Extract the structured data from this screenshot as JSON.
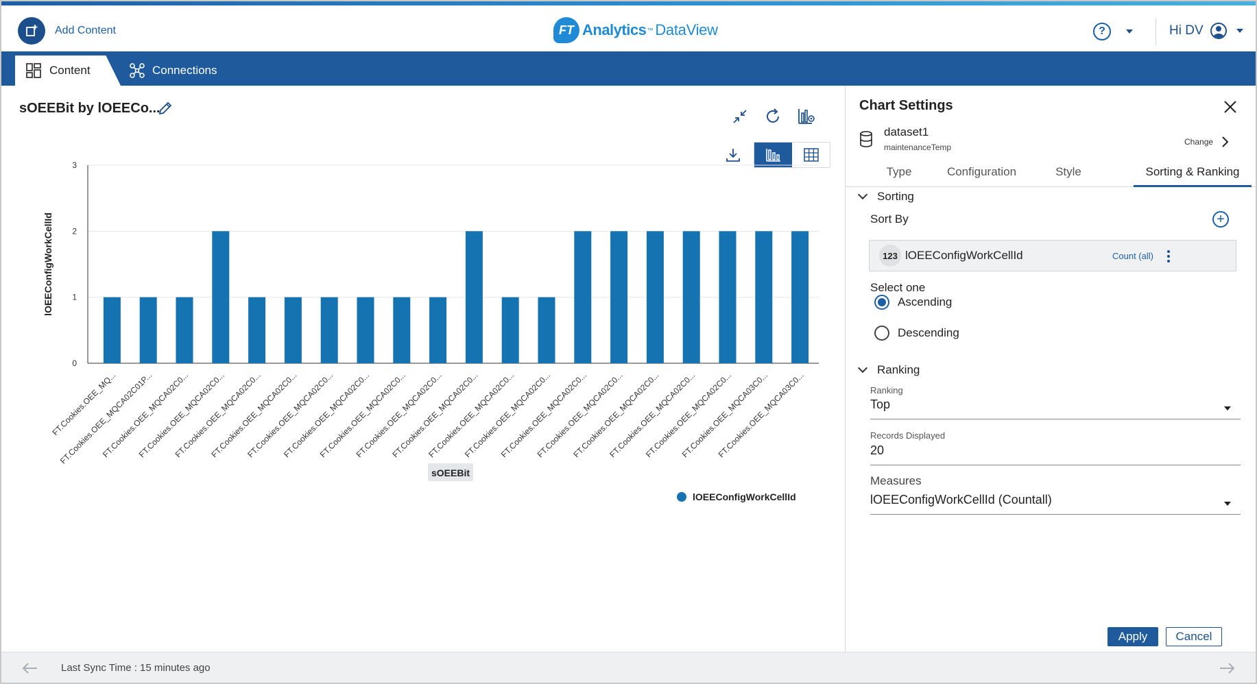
{
  "header": {
    "add_content_label": "Add Content",
    "brand_badge": "FT",
    "brand_name": "Analytics",
    "brand_tm": "™",
    "brand_product": "DataView",
    "help_label": "?",
    "user_greeting": "Hi DV"
  },
  "nav": {
    "tabs": [
      {
        "label": "Content",
        "icon": "dashboard-grid-icon",
        "active": true
      },
      {
        "label": "Connections",
        "icon": "connections-nodes-icon",
        "active": false
      }
    ]
  },
  "main": {
    "chart_title": "sOEEBit by lOEECo...",
    "toolbar": {
      "minimize_icon": "collapse-arrows-icon",
      "refresh_icon": "refresh-icon",
      "chart_settings_icon": "chart-settings-icon",
      "download_icon": "download-icon",
      "bar_view_icon": "bar-chart-icon",
      "table_view_icon": "table-grid-icon"
    }
  },
  "chart_data": {
    "type": "bar",
    "xlabel": "sOEEBit",
    "ylabel": "lOEEConfigWorkCellId",
    "ylim": [
      0,
      3
    ],
    "yticks": [
      "0",
      "1",
      "2",
      "3"
    ],
    "grid": true,
    "legend_position": "bottom-right",
    "categories": [
      "FT.Cookies.OEE_MQ...",
      "FT.Cookies.OEE_MQCA02C01P...",
      "FT.Cookies.OEE_MQCA02C0...",
      "FT.Cookies.OEE_MQCA02C0...",
      "FT.Cookies.OEE_MQCA02C0...",
      "FT.Cookies.OEE_MQCA02C0...",
      "FT.Cookies.OEE_MQCA02C0...",
      "FT.Cookies.OEE_MQCA02C0...",
      "FT.Cookies.OEE_MQCA02C0...",
      "FT.Cookies.OEE_MQCA02C0...",
      "FT.Cookies.OEE_MQCA02C0...",
      "FT.Cookies.OEE_MQCA02C0...",
      "FT.Cookies.OEE_MQCA02C0...",
      "FT.Cookies.OEE_MQCA02C0...",
      "FT.Cookies.OEE_MQCA02C0...",
      "FT.Cookies.OEE_MQCA02C0...",
      "FT.Cookies.OEE_MQCA02C0...",
      "FT.Cookies.OEE_MQCA02C0...",
      "FT.Cookies.OEE_MQCA03C0...",
      "FT.Cookies.OEE_MQCA03C0..."
    ],
    "series": [
      {
        "name": "lOEEConfigWorkCellId",
        "color": "#1473b0",
        "values": [
          1,
          1,
          1,
          2,
          1,
          1,
          1,
          1,
          1,
          1,
          2,
          1,
          1,
          2,
          2,
          2,
          2,
          2,
          2,
          2
        ]
      }
    ]
  },
  "settings": {
    "title": "Chart Settings",
    "close_icon": "close-icon",
    "dataset": {
      "name": "dataset1",
      "table": "maintenanceTemp",
      "change_label": "Change",
      "icon": "database-icon"
    },
    "tabs": [
      {
        "label": "Type",
        "active": false
      },
      {
        "label": "Configuration",
        "active": false
      },
      {
        "label": "Style",
        "active": false
      },
      {
        "label": "Sorting & Ranking",
        "active": true
      }
    ],
    "sorting": {
      "heading": "Sorting",
      "sort_by_label": "Sort By",
      "add_icon": "plus-circle-icon",
      "field": {
        "type_badge": "123",
        "name": "lOEEConfigWorkCellId",
        "aggregation": "Count (all)",
        "menu_icon": "more-vertical-icon"
      },
      "select_label": "Select one",
      "options": [
        {
          "label": "Ascending",
          "selected": true
        },
        {
          "label": "Descending",
          "selected": false
        }
      ]
    },
    "ranking": {
      "heading": "Ranking",
      "ranking_label": "Ranking",
      "ranking_value": "Top",
      "records_label": "Records Displayed",
      "records_value": "20",
      "measures_label": "Measures",
      "measures_value": "lOEEConfigWorkCellId (Countall)"
    },
    "buttons": {
      "apply": "Apply",
      "cancel": "Cancel"
    }
  },
  "footer": {
    "sync_text": "Last Sync Time : 15 minutes ago",
    "back_icon": "arrow-left-icon",
    "next_icon": "arrow-right-icon"
  },
  "colors": {
    "brand_blue": "#1e5a9c",
    "accent_blue": "#1d5fa6",
    "bar_color": "#1473b0",
    "logo_blue": "#1f8ad6"
  }
}
